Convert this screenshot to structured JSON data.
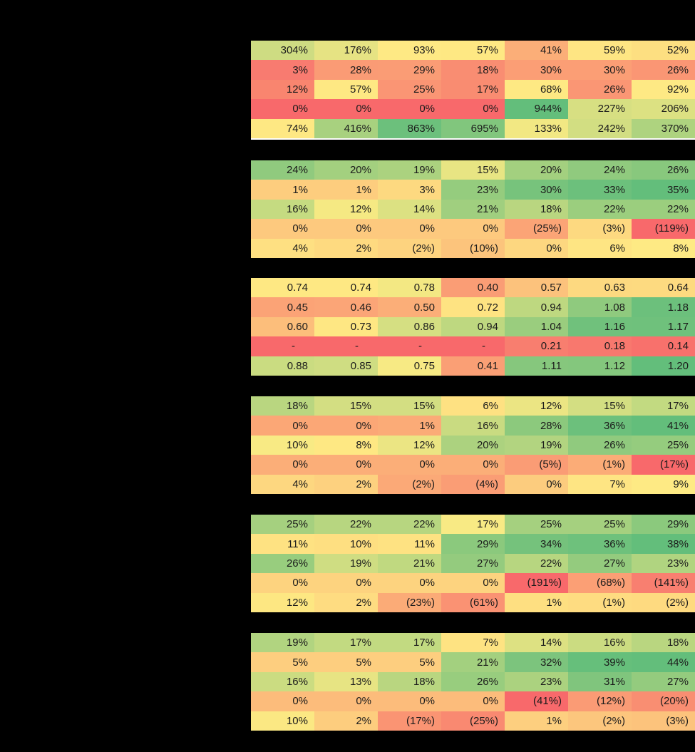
{
  "background_color": "#000000",
  "text_color": "#1b1b1b",
  "chart_data": {
    "type": "heatmap",
    "columns": 7,
    "rows_per_group": 5,
    "color_scale": {
      "low": "#F8696B",
      "mid": "#FFEB84",
      "high": "#63BE7B"
    },
    "separator_after_group_1": {
      "color": "#FFFFFF"
    },
    "groups": [
      {
        "values": [
          [
            "304%",
            "176%",
            "93%",
            "57%",
            "41%",
            "59%",
            "52%"
          ],
          [
            "3%",
            "28%",
            "29%",
            "18%",
            "30%",
            "30%",
            "26%"
          ],
          [
            "12%",
            "57%",
            "25%",
            "17%",
            "68%",
            "26%",
            "92%"
          ],
          [
            "0%",
            "0%",
            "0%",
            "0%",
            "944%",
            "227%",
            "206%"
          ],
          [
            "74%",
            "416%",
            "863%",
            "695%",
            "133%",
            "242%",
            "370%"
          ]
        ],
        "cell_colors": [
          [
            "#CEDC82",
            "#E6E383",
            "#FEE984",
            "#FEE883",
            "#FBAE78",
            "#FEE583",
            "#FDDF81"
          ],
          [
            "#F87B70",
            "#FA9B75",
            "#FA9C75",
            "#F98D72",
            "#FB9E75",
            "#FB9E75",
            "#FA9674"
          ],
          [
            "#F9856F",
            "#FEE883",
            "#FA9574",
            "#F98C71",
            "#FEE983",
            "#FA9674",
            "#FEE984"
          ],
          [
            "#F8696B",
            "#F8696B",
            "#F8696B",
            "#F8696B",
            "#63BE7B",
            "#D7DF82",
            "#DCE182"
          ],
          [
            "#FEE883",
            "#A8D17F",
            "#6CC07C",
            "#81C67D",
            "#F2E883",
            "#D2DE82",
            "#AED37F"
          ]
        ]
      },
      {
        "values": [
          [
            "24%",
            "20%",
            "19%",
            "15%",
            "20%",
            "24%",
            "26%"
          ],
          [
            "1%",
            "1%",
            "3%",
            "23%",
            "30%",
            "33%",
            "35%"
          ],
          [
            "16%",
            "12%",
            "14%",
            "21%",
            "18%",
            "22%",
            "22%"
          ],
          [
            "0%",
            "0%",
            "0%",
            "0%",
            "(25%)",
            "(3%)",
            "(119%)"
          ],
          [
            "4%",
            "2%",
            "(2%)",
            "(10%)",
            "0%",
            "6%",
            "8%"
          ]
        ],
        "cell_colors": [
          [
            "#90CA7E",
            "#A3D07F",
            "#ABD27F",
            "#E8E583",
            "#A3D07F",
            "#90CA7E",
            "#88C87D"
          ],
          [
            "#FDCD7E",
            "#FDCD7E",
            "#FDD980",
            "#95CC7E",
            "#77C37C",
            "#6CC07C",
            "#63BE7B"
          ],
          [
            "#C5DB81",
            "#F5E983",
            "#DCE182",
            "#A0CF7F",
            "#B9D680",
            "#9BCE7E",
            "#9BCE7E"
          ],
          [
            "#FDC97E",
            "#FDC97E",
            "#FDC97E",
            "#FDC97E",
            "#FBA476",
            "#FDD980",
            "#F8696B"
          ],
          [
            "#FEE082",
            "#FEDA80",
            "#FDD37F",
            "#FCC47C",
            "#FDD780",
            "#FEE583",
            "#FEEA84"
          ]
        ]
      },
      {
        "values": [
          [
            "0.74",
            "0.74",
            "0.78",
            "0.40",
            "0.57",
            "0.63",
            "0.64"
          ],
          [
            "0.45",
            "0.46",
            "0.50",
            "0.72",
            "0.94",
            "1.08",
            "1.18"
          ],
          [
            "0.60",
            "0.73",
            "0.86",
            "0.94",
            "1.04",
            "1.16",
            "1.17"
          ],
          [
            "-",
            "-",
            "-",
            "-",
            "0.21",
            "0.18",
            "0.14"
          ],
          [
            "0.88",
            "0.85",
            "0.75",
            "0.41",
            "1.11",
            "1.12",
            "1.20"
          ]
        ],
        "cell_colors": [
          [
            "#FEE883",
            "#FEE883",
            "#F3E883",
            "#FA9D75",
            "#FCC27C",
            "#FDD980",
            "#FDDA80"
          ],
          [
            "#FBA376",
            "#FBA577",
            "#FBAE78",
            "#FEE382",
            "#BED880",
            "#8FCA7E",
            "#6CC07C"
          ],
          [
            "#FCBE7B",
            "#FEE783",
            "#D5DF82",
            "#BED880",
            "#9ACD7E",
            "#70C17C",
            "#6FC17C"
          ],
          [
            "#F8696B",
            "#F8696B",
            "#F8696B",
            "#F8696B",
            "#F87E6F",
            "#F8786E",
            "#F8716C"
          ],
          [
            "#CADC81",
            "#CFDD82",
            "#F7EA84",
            "#FA9F75",
            "#86C77D",
            "#84C77D",
            "#63BE7B"
          ]
        ]
      },
      {
        "values": [
          [
            "18%",
            "15%",
            "15%",
            "6%",
            "12%",
            "15%",
            "17%"
          ],
          [
            "0%",
            "0%",
            "1%",
            "16%",
            "28%",
            "36%",
            "41%"
          ],
          [
            "10%",
            "8%",
            "12%",
            "20%",
            "19%",
            "26%",
            "25%"
          ],
          [
            "0%",
            "0%",
            "0%",
            "0%",
            "(5%)",
            "(1%)",
            "(17%)"
          ],
          [
            "4%",
            "2%",
            "(2%)",
            "(4%)",
            "0%",
            "7%",
            "9%"
          ]
        ],
        "cell_colors": [
          [
            "#B9D680",
            "#D3DE82",
            "#D3DE82",
            "#FEE182",
            "#EBE583",
            "#D3DE82",
            "#C2DA81"
          ],
          [
            "#FBA776",
            "#FBA776",
            "#FBAB77",
            "#C9DB81",
            "#8CC97D",
            "#6CC07C",
            "#63BE7B"
          ],
          [
            "#F8EA84",
            "#FEE883",
            "#EBE583",
            "#ACD27F",
            "#B2D480",
            "#90CA7E",
            "#95CC7E"
          ],
          [
            "#FBAE78",
            "#FBAE78",
            "#FBAE78",
            "#FBAE78",
            "#FA9C75",
            "#FBAC77",
            "#F8696B"
          ],
          [
            "#FDD780",
            "#FDD17F",
            "#FBA977",
            "#FA9D75",
            "#FCCC7E",
            "#FEE583",
            "#FEEA84"
          ]
        ]
      },
      {
        "values": [
          [
            "25%",
            "22%",
            "22%",
            "17%",
            "25%",
            "25%",
            "29%"
          ],
          [
            "11%",
            "10%",
            "11%",
            "29%",
            "34%",
            "36%",
            "38%"
          ],
          [
            "26%",
            "19%",
            "21%",
            "27%",
            "22%",
            "27%",
            "23%"
          ],
          [
            "0%",
            "0%",
            "0%",
            "0%",
            "(191%)",
            "(68%)",
            "(141%)"
          ],
          [
            "12%",
            "2%",
            "(23%)",
            "(61%)",
            "1%",
            "(1%)",
            "(2%)"
          ]
        ],
        "cell_colors": [
          [
            "#A5D07F",
            "#B7D680",
            "#B7D680",
            "#F8EA84",
            "#A5D07F",
            "#A5D07F",
            "#8BC97D"
          ],
          [
            "#FEE282",
            "#FEDF81",
            "#FEE282",
            "#8BC97D",
            "#75C27C",
            "#6EC17C",
            "#63BE7B"
          ],
          [
            "#98CD7E",
            "#CFDD82",
            "#C0D980",
            "#94CB7E",
            "#B7D680",
            "#94CB7E",
            "#B0D480"
          ],
          [
            "#FDD37F",
            "#FDD37F",
            "#FDD37F",
            "#FDD37F",
            "#F8696B",
            "#FB9F75",
            "#F87F70"
          ],
          [
            "#FDE782",
            "#FEDC81",
            "#FBAB77",
            "#FA9273",
            "#FEDF81",
            "#FEDC81",
            "#FEDA80"
          ]
        ]
      },
      {
        "values": [
          [
            "19%",
            "17%",
            "17%",
            "7%",
            "14%",
            "16%",
            "18%"
          ],
          [
            "5%",
            "5%",
            "5%",
            "21%",
            "32%",
            "39%",
            "44%"
          ],
          [
            "16%",
            "13%",
            "18%",
            "26%",
            "23%",
            "31%",
            "27%"
          ],
          [
            "0%",
            "0%",
            "0%",
            "0%",
            "(41%)",
            "(12%)",
            "(20%)"
          ],
          [
            "10%",
            "2%",
            "(17%)",
            "(25%)",
            "1%",
            "(2%)",
            "(3%)"
          ]
        ],
        "cell_colors": [
          [
            "#B1D480",
            "#C2DA81",
            "#C2DA81",
            "#FEE382",
            "#DDE182",
            "#CBDC81",
            "#B9D680"
          ],
          [
            "#FDCE7F",
            "#FDCE7F",
            "#FDCE7F",
            "#A3D07F",
            "#7CC47D",
            "#66BF7B",
            "#63BE7B"
          ],
          [
            "#CBDC81",
            "#E7E483",
            "#B9D680",
            "#98CD7E",
            "#ABD27F",
            "#80C57D",
            "#94CB7E"
          ],
          [
            "#FCBC7B",
            "#FCBC7B",
            "#FCBC7B",
            "#FCBC7B",
            "#F8696B",
            "#FA9B75",
            "#F98E72"
          ],
          [
            "#FBE883",
            "#FDCD7E",
            "#FA9473",
            "#F98971",
            "#FDCF7F",
            "#FCC67D",
            "#FCC37C"
          ]
        ]
      }
    ]
  }
}
